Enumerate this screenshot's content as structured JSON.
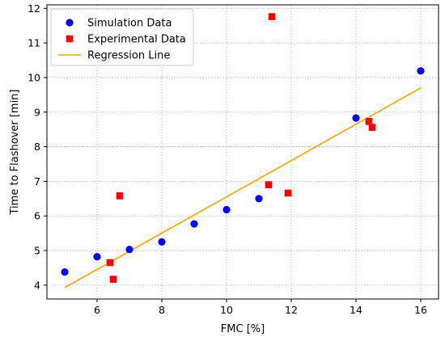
{
  "chart_data": {
    "type": "scatter",
    "title": "",
    "xlabel": "FMC [%]",
    "ylabel": "Time to Flashover [min]",
    "xlim": [
      4.45,
      16.55
    ],
    "ylim": [
      3.6,
      12.1
    ],
    "xticks": [
      6,
      8,
      10,
      12,
      14,
      16
    ],
    "yticks": [
      4,
      5,
      6,
      7,
      8,
      9,
      10,
      11,
      12
    ],
    "grid": true,
    "legend_position": "top-left",
    "series": [
      {
        "name": "Simulation Data",
        "marker": "circle",
        "color": "#0000ff",
        "points": [
          [
            5,
            4.38
          ],
          [
            6,
            4.82
          ],
          [
            7,
            5.03
          ],
          [
            8,
            5.25
          ],
          [
            9,
            5.77
          ],
          [
            10,
            6.18
          ],
          [
            11,
            6.5
          ],
          [
            14,
            8.83
          ],
          [
            16,
            10.19
          ]
        ]
      },
      {
        "name": "Experimental Data",
        "marker": "square",
        "color": "#ff0000",
        "points": [
          [
            6.4,
            4.65
          ],
          [
            6.5,
            4.17
          ],
          [
            6.7,
            6.58
          ],
          [
            11.3,
            6.9
          ],
          [
            11.4,
            11.76
          ],
          [
            11.9,
            6.66
          ],
          [
            14.4,
            8.73
          ],
          [
            14.5,
            8.56
          ]
        ]
      },
      {
        "name": "Regression Line",
        "marker": "line",
        "color": "#ffa500",
        "points": [
          [
            5,
            3.93
          ],
          [
            16,
            9.7
          ]
        ]
      }
    ]
  }
}
